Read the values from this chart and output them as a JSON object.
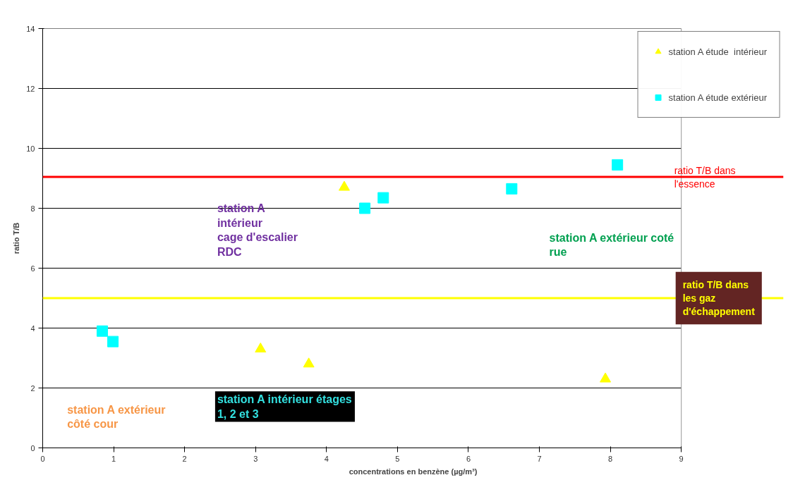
{
  "chart_data": {
    "type": "scatter",
    "xlabel": "concentrations en benzène (µg/m³)",
    "ylabel": "ratio T/B",
    "xlim": [
      0,
      9
    ],
    "xticks": [
      0,
      1,
      2,
      3,
      4,
      5,
      6,
      7,
      8,
      9
    ],
    "ylim": [
      0,
      14
    ],
    "yticks": [
      0,
      2,
      4,
      6,
      8,
      10,
      12,
      14
    ],
    "grid": "y",
    "legend": "top right",
    "series": [
      {
        "name": "station A étude  intérieur",
        "color": "#ffff00",
        "marker": "triangle",
        "x": [
          4.25,
          3.07,
          3.75,
          7.93
        ],
        "values": [
          8.7,
          3.3,
          2.8,
          2.3
        ]
      },
      {
        "name": "station A étude extérieur",
        "color": "#00ffff",
        "marker": "square",
        "x": [
          0.84,
          0.99,
          4.54,
          4.8,
          6.61,
          8.1
        ],
        "values": [
          3.9,
          3.55,
          8.0,
          8.35,
          8.65,
          9.45
        ]
      }
    ],
    "ref_lines": [
      {
        "axis": "y",
        "value": 9.05,
        "label": "ratio T/B dans\nl'essence",
        "color": "#ff0000"
      },
      {
        "axis": "y",
        "value": 5,
        "label": "ratio T/B dans\nles gaz\nd'échappement",
        "color": "#ffff00"
      }
    ],
    "annotations": [
      "station A\nintérieur\ncage d'escalier\nRDC",
      "station A  extérieur coté\nrue",
      "station A extérieur\ncôté cour",
      "station A intérieur étages\n1, 2 et 3"
    ]
  }
}
